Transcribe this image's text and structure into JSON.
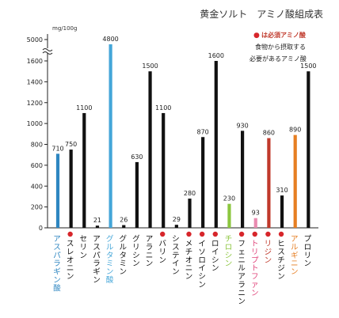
{
  "chart_data": {
    "type": "bar",
    "title": "黄金ソルト　アミノ酸組成表",
    "unit_label": "mg/100g",
    "y_ticks": [
      0,
      200,
      400,
      600,
      800,
      1000,
      1200,
      1400,
      1600,
      5000
    ],
    "ylim": [
      0,
      1700
    ],
    "axis_break": {
      "from": 1700,
      "to": 4800
    },
    "grid": false,
    "legend": {
      "placement": "top-right",
      "bullet": "●",
      "lines": [
        "は必須アミノ酸",
        "食物から摂取する",
        "必要があるアミノ酸"
      ]
    },
    "colors": {
      "default": "#111111",
      "essential_dot": "#d7262b",
      "legend_text": "#c0392b",
      "axis": "#222222"
    },
    "categories": [
      {
        "label": "アスパラギン酸",
        "value": 710,
        "essential": false,
        "color": "#2e86c1",
        "label_color": "#2e86c1"
      },
      {
        "label": "スレオニン",
        "value": 750,
        "essential": true,
        "color": "#111111",
        "label_color": "#111111"
      },
      {
        "label": "セリン",
        "value": 1100,
        "essential": false,
        "color": "#111111",
        "label_color": "#111111"
      },
      {
        "label": "アスパラギン",
        "value": 21,
        "essential": false,
        "color": "#111111",
        "label_color": "#111111"
      },
      {
        "label": "グルタミン酸",
        "value": 4800,
        "essential": false,
        "color": "#44a6d8",
        "label_color": "#44a6d8"
      },
      {
        "label": "グルタミン",
        "value": 26,
        "essential": false,
        "color": "#111111",
        "label_color": "#111111"
      },
      {
        "label": "グリシン",
        "value": 630,
        "essential": false,
        "color": "#111111",
        "label_color": "#111111"
      },
      {
        "label": "アラニン",
        "value": 1500,
        "essential": false,
        "color": "#111111",
        "label_color": "#111111"
      },
      {
        "label": "バリン",
        "value": 1100,
        "essential": true,
        "color": "#111111",
        "label_color": "#111111"
      },
      {
        "label": "システイン",
        "value": 29,
        "essential": false,
        "color": "#111111",
        "label_color": "#111111"
      },
      {
        "label": "メチオニン",
        "value": 280,
        "essential": true,
        "color": "#111111",
        "label_color": "#111111"
      },
      {
        "label": "イソロイシン",
        "value": 870,
        "essential": true,
        "color": "#111111",
        "label_color": "#111111"
      },
      {
        "label": "ロイシン",
        "value": 1600,
        "essential": true,
        "color": "#111111",
        "label_color": "#111111"
      },
      {
        "label": "チロシン",
        "value": 230,
        "essential": false,
        "color": "#8cc63f",
        "label_color": "#8cc63f"
      },
      {
        "label": "フェニルアラニン",
        "value": 930,
        "essential": true,
        "color": "#111111",
        "label_color": "#111111"
      },
      {
        "label": "トリプトファン",
        "value": 93,
        "essential": true,
        "color": "#e98bb0",
        "label_color": "#e0457b"
      },
      {
        "label": "リジン",
        "value": 860,
        "essential": true,
        "color": "#c0392b",
        "label_color": "#c0392b"
      },
      {
        "label": "ヒスチジン",
        "value": 310,
        "essential": true,
        "color": "#111111",
        "label_color": "#111111"
      },
      {
        "label": "アルギニン",
        "value": 890,
        "essential": false,
        "color": "#e67e22",
        "label_color": "#e67e22"
      },
      {
        "label": "プロリン",
        "value": 1500,
        "essential": false,
        "color": "#111111",
        "label_color": "#111111"
      }
    ]
  }
}
